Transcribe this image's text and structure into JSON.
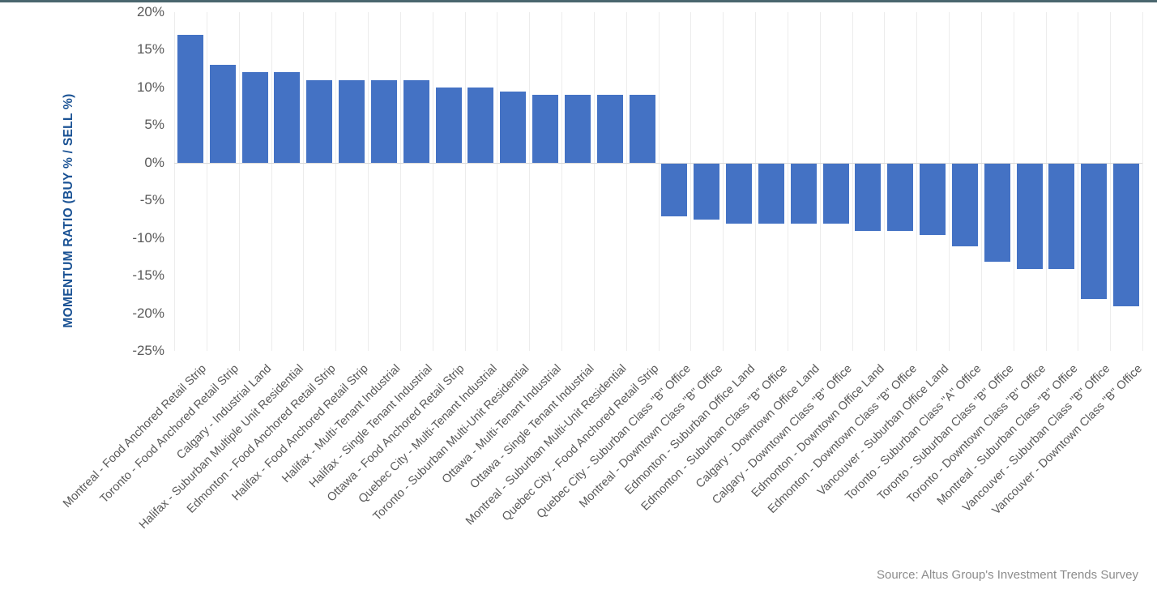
{
  "page": {
    "top_border_color": "#4A666E"
  },
  "chart_data": {
    "type": "bar",
    "title": "",
    "xlabel": "",
    "ylabel": "MOMENTUM RATIO (BUY % / SELL %)",
    "ylim": [
      -25,
      20
    ],
    "ytick_step": 5,
    "yticks": [
      "20%",
      "15%",
      "10%",
      "5%",
      "0%",
      "-5%",
      "-10%",
      "-15%",
      "-20%",
      "-25%"
    ],
    "grid": "vertical-light",
    "legend": "none",
    "source": "Source: Altus Group's Investment Trends Survey",
    "colors": {
      "bar": "#4472C4",
      "axis_title": "#1A5294",
      "tick_label": "#595959",
      "category_label": "#595959",
      "source": "#8C8C8C",
      "gridline": "#ECECEC",
      "zero_line": "#D9D9D9",
      "top_border": "#4A666E"
    },
    "categories": [
      "Montreal - Food Anchored Retail Strip",
      "Toronto - Food Anchored Retail Strip",
      "Calgary - Industrial Land",
      "Halifax - Suburban Multiple Unit Residential",
      "Edmonton - Food Anchored Retail Strip",
      "Halifax - Food Anchored Retail Strip",
      "Halifax - Multi-Tenant Industrial",
      "Halifax - Single Tenant Industrial",
      "Ottawa - Food Anchored Retail Strip",
      "Quebec City - Multi-Tenant Industrial",
      "Toronto - Suburban Multi-Unit Residential",
      "Ottawa - Multi-Tenant Industrial",
      "Ottawa - Single Tenant Industrial",
      "Montreal - Suburban Multi-Unit Residential",
      "Quebec City - Food Anchored Retail Strip",
      "Quebec City - Suburban Class \"B\" Office",
      "Montreal - Downtown Class \"B\" Office",
      "Edmonton - Suburban Office Land",
      "Edmonton - Suburban Class \"B\" Office",
      "Calgary - Downtown Office Land",
      "Calgary - Downtown Class \"B\" Office",
      "Edmonton - Downtown Office Land",
      "Edmonton - Downtown Class \"B\" Office",
      "Vancouver - Suburban Office Land",
      "Toronto - Suburban Class \"A\" Office",
      "Toronto - Suburban Class \"B\" Office",
      "Toronto - Downtown Class \"B\" Office",
      "Montreal - Suburban Class \"B\" Office",
      "Vancouver - Suburban Class \"B\" Office",
      "Vancouver - Downtown Class \"B\" Office"
    ],
    "values": [
      17,
      13,
      12,
      12,
      11,
      11,
      11,
      11,
      10,
      10,
      9.5,
      9,
      9,
      9,
      9,
      -7,
      -7.5,
      -8,
      -8,
      -8,
      -8,
      -9,
      -9,
      -9.5,
      -11,
      -13,
      -14,
      -14,
      -18,
      -19
    ]
  }
}
